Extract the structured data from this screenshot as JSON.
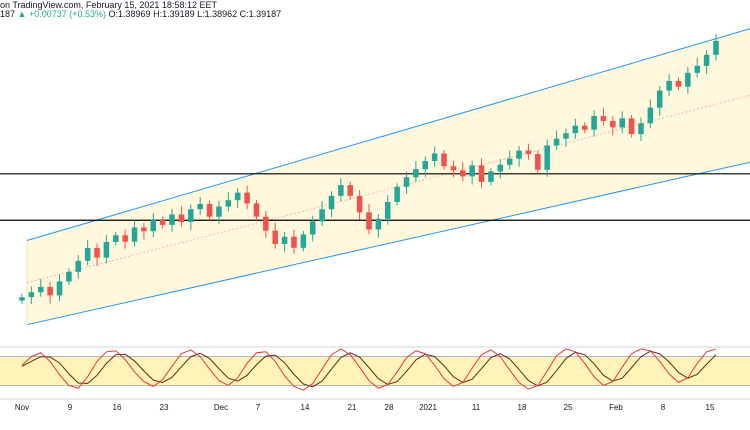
{
  "header": {
    "line1": "on TradingView.com, February 15, 2021 18:58:12 EET",
    "line2_left": "187",
    "line2_change": "▲ +0.00737 (+0.53%)",
    "line2_ohlc": "O:1.38969 H:1.39189 L:1.38962 C:1.39187"
  },
  "chart_data": {
    "type": "candlestick",
    "x_ticks": [
      "Nov",
      "9",
      "16",
      "23",
      "Dec",
      "7",
      "14",
      "21",
      "28",
      "2021",
      "11",
      "18",
      "25",
      "Feb",
      "8",
      "15"
    ],
    "price_series": {
      "name": "",
      "description": "daily candles, rising inside a regression channel",
      "closes": [
        1.3035,
        1.3052,
        1.307,
        1.3041,
        1.3089,
        1.3122,
        1.316,
        1.3204,
        1.3171,
        1.3225,
        1.3248,
        1.3226,
        1.3275,
        1.3262,
        1.3301,
        1.3284,
        1.332,
        1.3294,
        1.3338,
        1.3356,
        1.3312,
        1.3347,
        1.3369,
        1.3395,
        1.3358,
        1.3312,
        1.3264,
        1.3218,
        1.3243,
        1.3205,
        1.3251,
        1.3296,
        1.3338,
        1.3384,
        1.3421,
        1.3384,
        1.3327,
        1.3268,
        1.3305,
        1.3363,
        1.3415,
        1.3448,
        1.3476,
        1.3504,
        1.353,
        1.3486,
        1.3472,
        1.3451,
        1.3489,
        1.3432,
        1.3468,
        1.3491,
        1.3512,
        1.354,
        1.3528,
        1.3474,
        1.3558,
        1.3581,
        1.36,
        1.3626,
        1.3612,
        1.3659,
        1.3642,
        1.362,
        1.3651,
        1.3597,
        1.3634,
        1.3688,
        1.3747,
        1.378,
        1.376,
        1.3808,
        1.3832,
        1.387,
        1.3918
      ]
    },
    "horizontal_lines": [
      1.346,
      1.33
    ],
    "channel": {
      "lower_start": 1.294,
      "lower_end": 1.35,
      "upper_start": 1.323,
      "upper_end": 1.396
    },
    "oscillator": {
      "upper_band": 80,
      "lower_band": 20,
      "k": [
        62,
        80,
        88,
        70,
        42,
        20,
        14,
        38,
        70,
        90,
        92,
        74,
        48,
        28,
        18,
        32,
        60,
        86,
        94,
        80,
        54,
        30,
        20,
        36,
        66,
        88,
        90,
        70,
        40,
        18,
        10,
        24,
        54,
        84,
        96,
        84,
        58,
        30,
        14,
        22,
        48,
        78,
        92,
        86,
        62,
        34,
        18,
        26,
        56,
        84,
        94,
        80,
        52,
        26,
        12,
        20,
        50,
        82,
        96,
        90,
        66,
        38,
        20,
        28,
        58,
        86,
        96,
        92,
        70,
        44,
        26,
        36,
        66,
        90,
        96
      ],
      "d": [
        60,
        70,
        80,
        79,
        67,
        44,
        25,
        24,
        41,
        66,
        84,
        85,
        71,
        50,
        31,
        26,
        37,
        59,
        80,
        87,
        76,
        55,
        35,
        29,
        41,
        63,
        81,
        83,
        67,
        43,
        23,
        17,
        29,
        54,
        78,
        88,
        79,
        57,
        34,
        22,
        28,
        49,
        73,
        85,
        80,
        61,
        38,
        26,
        33,
        55,
        78,
        86,
        75,
        53,
        30,
        19,
        27,
        51,
        76,
        89,
        84,
        65,
        41,
        29,
        35,
        57,
        80,
        91,
        86,
        69,
        47,
        35,
        43,
        64,
        84
      ]
    }
  },
  "colors": {
    "up": "#26a69a",
    "down": "#ef5350",
    "channel_line": "#2196f3",
    "channel_fill": "#fff8dc",
    "level_line": "#000000",
    "osc_fill": "#fff3b8",
    "osc_k": "#e53935",
    "osc_d": "#5d2a1c"
  }
}
